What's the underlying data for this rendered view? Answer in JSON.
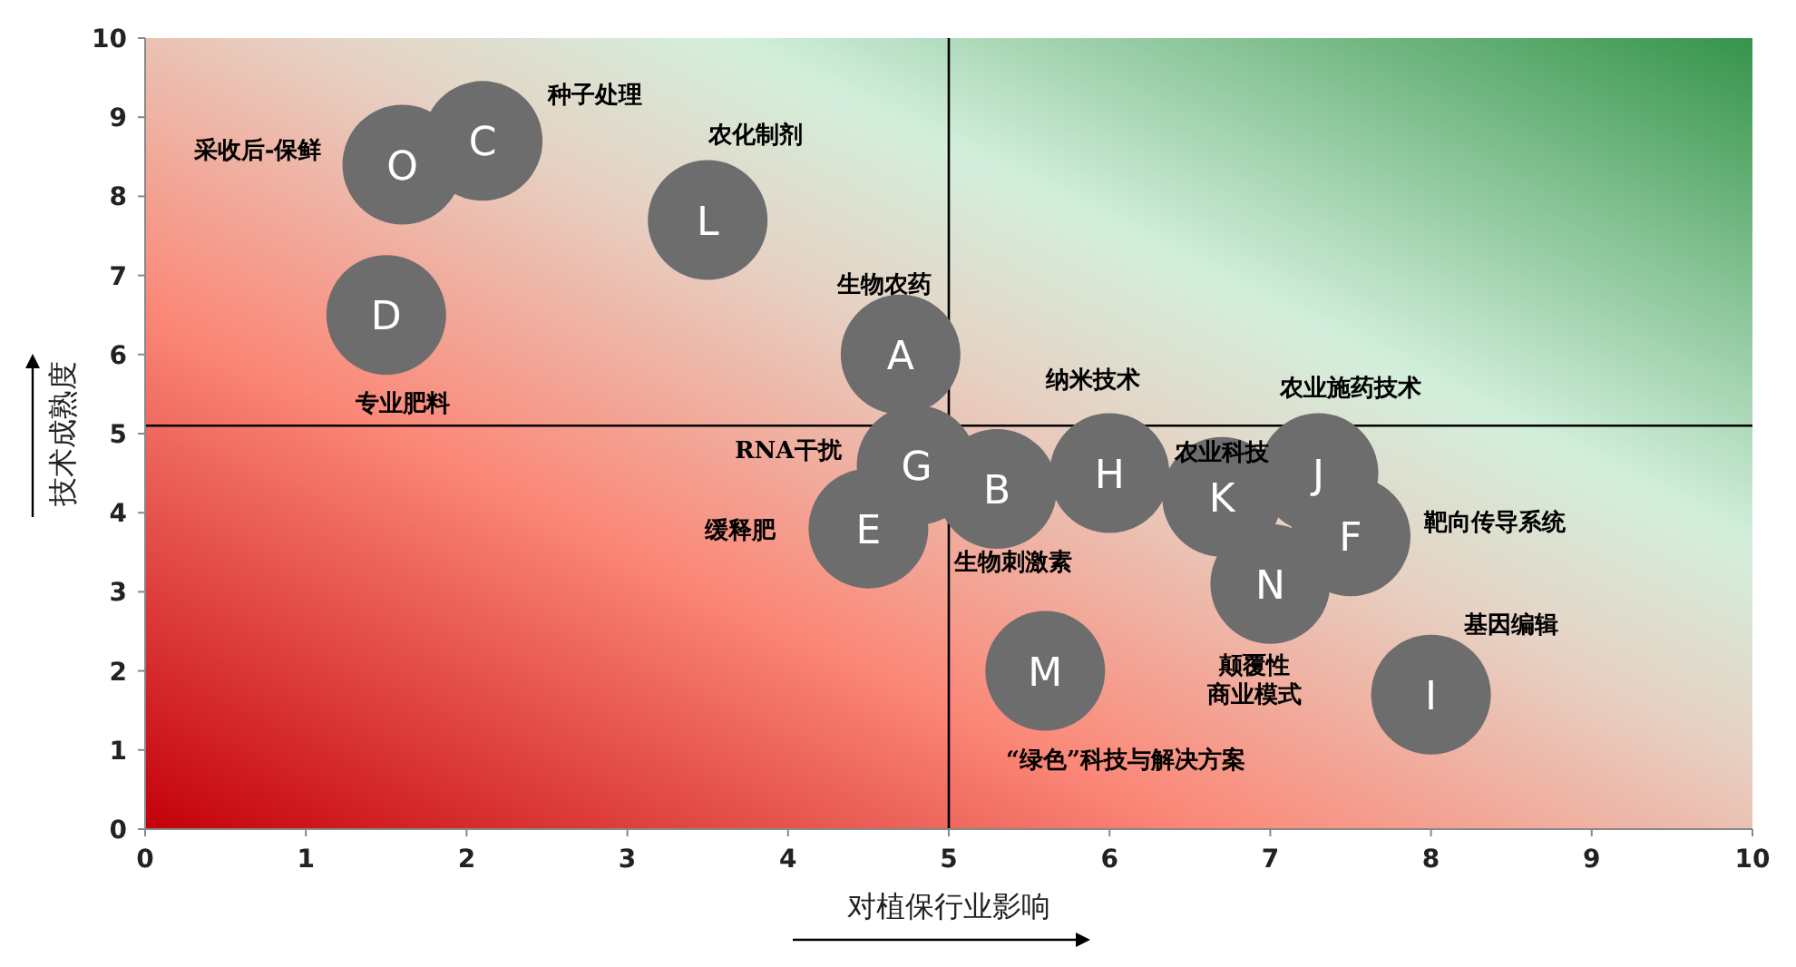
{
  "chart_data": {
    "type": "bubble",
    "xlabel": "对植保行业影响",
    "ylabel": "技术成熟度",
    "xlim": [
      0,
      10
    ],
    "ylim": [
      0,
      10
    ],
    "xticks": [
      0,
      1,
      2,
      3,
      4,
      5,
      6,
      7,
      8,
      9,
      10
    ],
    "yticks": [
      0,
      1,
      2,
      3,
      4,
      5,
      6,
      7,
      8,
      9,
      10
    ],
    "ref_lines": [
      {
        "axis": "x",
        "value": 5,
        "color": "#000000"
      },
      {
        "axis": "y",
        "value": 5.1,
        "color": "#000000"
      }
    ],
    "series": [
      {
        "name": "O",
        "color": "#6d6d6d",
        "x": [
          1.6
        ],
        "values": [
          8.4
        ],
        "sizes": [
          1
        ]
      },
      {
        "name": "C",
        "color": "#6d6d6d",
        "x": [
          2.1
        ],
        "values": [
          8.7
        ],
        "sizes": [
          1
        ]
      },
      {
        "name": "L",
        "color": "#6d6d6d",
        "x": [
          3.5
        ],
        "values": [
          7.7
        ],
        "sizes": [
          1
        ]
      },
      {
        "name": "D",
        "color": "#6d6d6d",
        "x": [
          1.5
        ],
        "values": [
          6.5
        ],
        "sizes": [
          1
        ]
      },
      {
        "name": "A",
        "color": "#6d6d6d",
        "x": [
          4.7
        ],
        "values": [
          6.0
        ],
        "sizes": [
          1
        ]
      },
      {
        "name": "G",
        "color": "#6d6d6d",
        "x": [
          4.8
        ],
        "values": [
          4.6
        ],
        "sizes": [
          1
        ]
      },
      {
        "name": "B",
        "color": "#6d6d6d",
        "x": [
          5.3
        ],
        "values": [
          4.3
        ],
        "sizes": [
          1
        ]
      },
      {
        "name": "E",
        "color": "#6d6d6d",
        "x": [
          4.5
        ],
        "values": [
          3.8
        ],
        "sizes": [
          1
        ]
      },
      {
        "name": "H",
        "color": "#6d6d6d",
        "x": [
          6.0
        ],
        "values": [
          4.5
        ],
        "sizes": [
          1
        ]
      },
      {
        "name": "K",
        "color": "#6d6d6d",
        "x": [
          6.7
        ],
        "values": [
          4.2
        ],
        "sizes": [
          1
        ]
      },
      {
        "name": "J",
        "color": "#6d6d6d",
        "x": [
          7.3
        ],
        "values": [
          4.5
        ],
        "sizes": [
          1
        ]
      },
      {
        "name": "F",
        "color": "#6d6d6d",
        "x": [
          7.5
        ],
        "values": [
          3.7
        ],
        "sizes": [
          1
        ]
      },
      {
        "name": "N",
        "color": "#6d6d6d",
        "x": [
          7.0
        ],
        "values": [
          3.1
        ],
        "sizes": [
          1
        ]
      },
      {
        "name": "M",
        "color": "#6d6d6d",
        "x": [
          5.6
        ],
        "values": [
          2.0
        ],
        "sizes": [
          1
        ]
      },
      {
        "name": "I",
        "color": "#6d6d6d",
        "x": [
          8.0
        ],
        "values": [
          1.7
        ],
        "sizes": [
          1
        ]
      }
    ],
    "annotations": [
      "种子处理",
      "采收后-保鲜",
      "农化制剂",
      "生物农药",
      "专业肥料",
      "纳米技术",
      "农业施药技术",
      "RNA干扰",
      "农业科技",
      "靶向传导系统",
      "缓释肥",
      "生物刺激素",
      "颠覆性商业模式",
      "基因编辑",
      "“绿色”科技与解决方案"
    ]
  }
}
